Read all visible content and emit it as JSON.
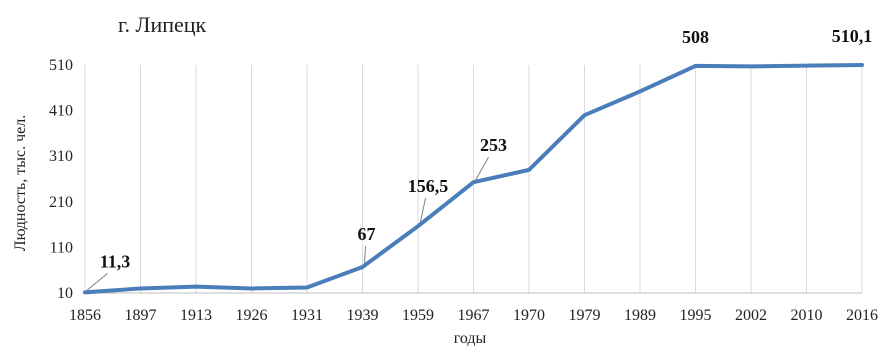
{
  "chart_data": {
    "type": "line",
    "title": "г. Липецк",
    "xlabel": "годы",
    "ylabel": "Людность, тыс. чел.",
    "categories": [
      "1856",
      "1897",
      "1913",
      "1926",
      "1931",
      "1939",
      "1959",
      "1967",
      "1970",
      "1979",
      "1989",
      "1995",
      "2002",
      "2010",
      "2016"
    ],
    "series": [
      {
        "values": [
          11.3,
          20,
          24,
          20,
          22,
          67,
          156.5,
          253,
          280,
          400,
          452,
          508,
          507,
          508.5,
          510.1
        ]
      }
    ],
    "yticks": [
      "10",
      "110",
      "210",
      "310",
      "410",
      "510"
    ],
    "ylim": [
      10,
      510
    ],
    "grid": "vertical",
    "line_color": "#4a7ebb",
    "labels": [
      {
        "index": 0,
        "text": "11,3"
      },
      {
        "index": 5,
        "text": "67"
      },
      {
        "index": 6,
        "text": "156,5"
      },
      {
        "index": 7,
        "text": "253"
      },
      {
        "index": 11,
        "text": "508"
      },
      {
        "index": 14,
        "text": "510,1"
      }
    ]
  }
}
